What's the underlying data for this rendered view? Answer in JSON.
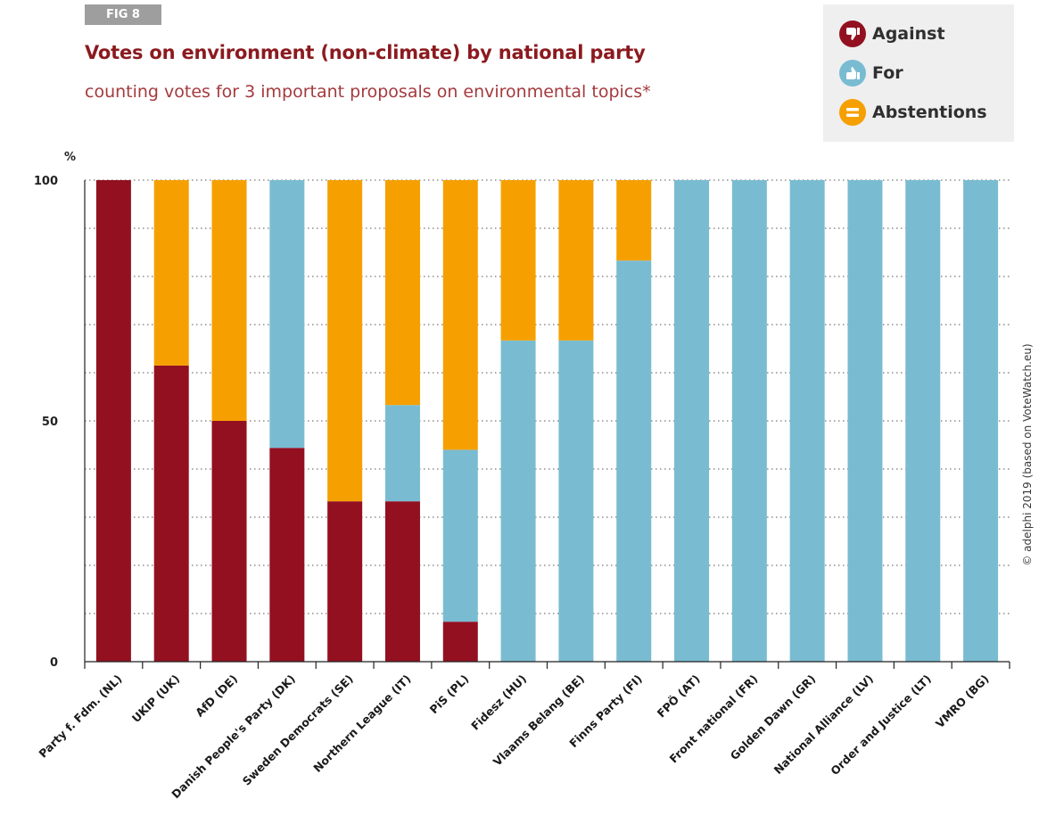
{
  "badge": "FIG 8",
  "title": "Votes on environment (non-climate) by national party",
  "subtitle": "counting votes for 3 important proposals on environmental topics*",
  "legend": {
    "items": [
      {
        "label": "Against",
        "color": "#921020",
        "icon": "thumbs-down-icon"
      },
      {
        "label": "For",
        "color": "#79bcd2",
        "icon": "thumbs-up-icon"
      },
      {
        "label": "Abstentions",
        "color": "#f5a000",
        "icon": "equals-icon"
      }
    ]
  },
  "copyright": "© adelphi 2019 (based on VoteWatch.eu)",
  "chart_data": {
    "type": "bar",
    "stacked": true,
    "ylabel": "%",
    "ylim": [
      0,
      100
    ],
    "yticks": [
      0,
      50,
      100
    ],
    "grid": true,
    "legend_position": "top-right",
    "categories": [
      "Party f. Fdm. (NL)",
      "UKIP (UK)",
      "AfD (DE)",
      "Danish People's Party (DK)",
      "Sweden Democrats (SE)",
      "Northern League (IT)",
      "PiS (PL)",
      "Fidesz (HU)",
      "Vlaams Belang (BE)",
      "Finns Party (FI)",
      "FPÖ (AT)",
      "Front national (FR)",
      "Golden Dawn (GR)",
      "National Alliance (LV)",
      "Order and Justice (LT)",
      "VMRO (BG)"
    ],
    "series": [
      {
        "name": "Against",
        "color": "#921020",
        "values": [
          100,
          61.5,
          50,
          44.4,
          33.3,
          33.3,
          8.3,
          0,
          0,
          0,
          0,
          0,
          0,
          0,
          0,
          0
        ]
      },
      {
        "name": "For",
        "color": "#79bcd2",
        "values": [
          0,
          0,
          0,
          55.6,
          0,
          20,
          35.7,
          66.7,
          66.7,
          83.3,
          100,
          100,
          100,
          100,
          100,
          100
        ]
      },
      {
        "name": "Abstentions",
        "color": "#f5a000",
        "values": [
          0,
          38.5,
          50,
          0,
          66.7,
          46.7,
          56,
          33.3,
          33.3,
          16.7,
          0,
          0,
          0,
          0,
          0,
          0
        ]
      }
    ]
  }
}
